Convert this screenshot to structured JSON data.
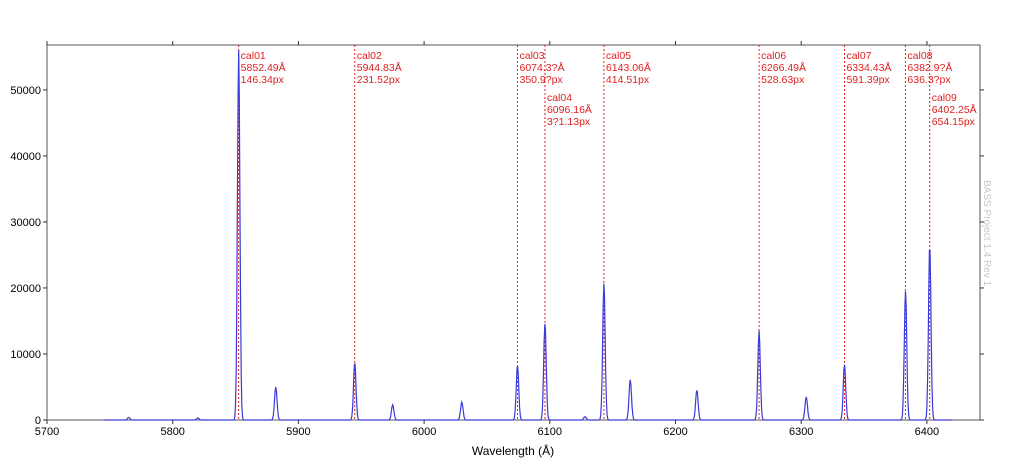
{
  "chart_data": {
    "type": "line",
    "xlabel": "Wavelength (Å)",
    "ylabel": "",
    "xlim": [
      5700,
      6450
    ],
    "ylim": [
      0,
      56800
    ],
    "xticks": [
      5700,
      5800,
      5900,
      6000,
      6100,
      6200,
      6300,
      6400
    ],
    "yticks": [
      0,
      10000,
      20000,
      30000,
      40000,
      50000
    ],
    "grid": false,
    "watermark": "BASS Project 1.4 Rev 1",
    "series_color": "#3a3adc",
    "marker_color": "#e02020",
    "peaks": [
      {
        "x": 5765,
        "y": 400
      },
      {
        "x": 5820,
        "y": 300
      },
      {
        "x": 5852.49,
        "y": 56000
      },
      {
        "x": 5882,
        "y": 5000
      },
      {
        "x": 5944.83,
        "y": 8700
      },
      {
        "x": 5975,
        "y": 2300
      },
      {
        "x": 6030,
        "y": 2700
      },
      {
        "x": 6074.3,
        "y": 8300
      },
      {
        "x": 6096.16,
        "y": 14700
      },
      {
        "x": 6128,
        "y": 500
      },
      {
        "x": 6143.06,
        "y": 20700
      },
      {
        "x": 6164,
        "y": 6100
      },
      {
        "x": 6217,
        "y": 4500
      },
      {
        "x": 6266.49,
        "y": 13500
      },
      {
        "x": 6304,
        "y": 3500
      },
      {
        "x": 6334.43,
        "y": 8400
      },
      {
        "x": 6383,
        "y": 19500
      },
      {
        "x": 6402.25,
        "y": 26500
      }
    ],
    "calibration_markers": [
      {
        "name": "cal01",
        "wavelength": "5852.49Å",
        "pixel": "146.34px",
        "x": 5852.49
      },
      {
        "name": "cal02",
        "wavelength": "5944.83Å",
        "pixel": "231.52px",
        "x": 5944.83
      },
      {
        "name": "cal03",
        "wavelength": "6074.3?Å",
        "pixel": "350.9?px",
        "x": 6074.3
      },
      {
        "name": "cal04",
        "wavelength": "6096.16Å",
        "pixel": "3?1.13px",
        "x": 6096.16
      },
      {
        "name": "cal05",
        "wavelength": "6143.06Å",
        "pixel": "414.51px",
        "x": 6143.06
      },
      {
        "name": "cal06",
        "wavelength": "6266.49Å",
        "pixel": "528.63px",
        "x": 6266.49
      },
      {
        "name": "cal07",
        "wavelength": "6334.43Å",
        "pixel": "591.39px",
        "x": 6334.43
      },
      {
        "name": "cal08",
        "wavelength": "6382.9?Å",
        "pixel": "636.3?px",
        "x": 6382.9
      },
      {
        "name": "cal09",
        "wavelength": "6402.25Å",
        "pixel": "654.15px",
        "x": 6402.25
      }
    ]
  }
}
